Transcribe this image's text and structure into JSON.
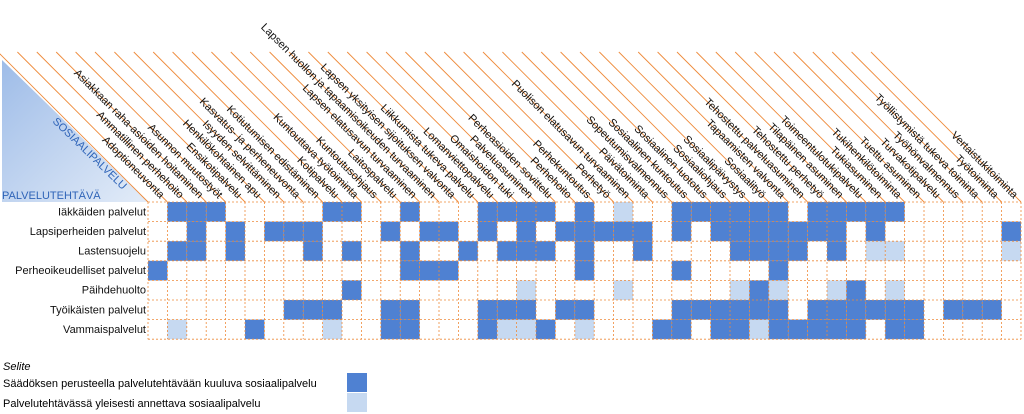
{
  "corner": {
    "top_label": "SOSIAALIPALVELU",
    "bottom_label": "PALVELUTEHTÄVÄ"
  },
  "chart_data": {
    "type": "table",
    "columns": [
      "Adoptioneuvonta",
      "Ammatillinen perhehoito",
      "Asiakkaan raha-asioiden hoitaminen",
      "Asunnon muutostyöt",
      "Ensikotipalvelu",
      "Henkilökohtainen apu",
      "Isyyden selvittäminen",
      "Kasvatus- ja perheneuvonta",
      "Kotiutumisen edistäminen",
      "Kotipalvelu",
      "Kuntouttava työtoiminta",
      "Kuntoutusohjaus",
      "Laitospalvelu",
      "Lapsen elatusavun turvaaminen",
      "Lapsen huollon ja tapaamisoikeuden turvaaminen",
      "Lapsen yksityisen sijoituksen valvonta",
      "Liikkumista tukeva palvelu",
      "Lomanviettopalvelu",
      "Omaishoidon tuki",
      "Palveluasuminen",
      "Perheasioiden sovittelu",
      "Perhehoito",
      "Perhekuntoutus",
      "Perhetyö",
      "Puolison elatusavun turvaaminen",
      "Päivätoiminta",
      "Sopeutumisvalmennus",
      "Sosiaalinen kuntoutus",
      "Sosiaalinen luototus",
      "Sosiaaliohjaus",
      "Sosiaalipäivystys",
      "Sosiaalityö",
      "Tapaamisten valvonta",
      "Tehostettu palveluasuminen",
      "Tehostettu perhetyö",
      "Tilapäinen asuminen",
      "Toimeentulotukipalvelu",
      "Tukiasuminen",
      "Tukihenkilötoiminta",
      "Tuettu asuminen",
      "Turvakotipalvelu",
      "Työhönvalmennus",
      "Työllistymistä tukeva toiminta",
      "Työtoiminta",
      "Vertaistukitoiminta"
    ],
    "rows": [
      {
        "name": "Iäkkäiden palvelut",
        "cells": [
          0,
          1,
          1,
          1,
          0,
          0,
          0,
          0,
          0,
          1,
          1,
          0,
          0,
          1,
          0,
          0,
          0,
          1,
          1,
          1,
          1,
          0,
          1,
          0,
          2,
          0,
          0,
          1,
          1,
          1,
          1,
          1,
          1,
          0,
          1,
          1,
          1,
          1,
          1,
          0,
          0,
          0,
          0,
          0,
          0
        ]
      },
      {
        "name": "Lapsiperheiden palvelut",
        "cells": [
          0,
          0,
          1,
          0,
          1,
          0,
          1,
          1,
          1,
          0,
          0,
          0,
          1,
          0,
          1,
          1,
          0,
          1,
          0,
          1,
          0,
          1,
          1,
          1,
          1,
          1,
          0,
          1,
          0,
          1,
          1,
          1,
          1,
          1,
          1,
          1,
          0,
          1,
          0,
          0,
          0,
          0,
          0,
          0,
          1
        ]
      },
      {
        "name": "Lastensuojelu",
        "cells": [
          0,
          1,
          1,
          0,
          1,
          0,
          0,
          0,
          1,
          0,
          1,
          0,
          0,
          1,
          0,
          0,
          1,
          0,
          1,
          1,
          1,
          0,
          1,
          0,
          0,
          1,
          0,
          0,
          0,
          0,
          1,
          1,
          1,
          1,
          0,
          1,
          0,
          2,
          2,
          0,
          0,
          0,
          0,
          0,
          2
        ]
      },
      {
        "name": "Perheoikeudelliset palvelut",
        "cells": [
          1,
          0,
          0,
          0,
          0,
          0,
          0,
          0,
          0,
          0,
          0,
          0,
          0,
          1,
          1,
          1,
          0,
          0,
          0,
          0,
          0,
          0,
          1,
          0,
          0,
          0,
          0,
          1,
          0,
          0,
          0,
          0,
          1,
          0,
          0,
          0,
          0,
          0,
          0,
          0,
          0,
          0,
          0,
          0,
          0
        ]
      },
      {
        "name": "Päihdehuolto",
        "cells": [
          0,
          0,
          0,
          0,
          0,
          0,
          0,
          0,
          0,
          0,
          1,
          0,
          0,
          0,
          0,
          0,
          0,
          0,
          0,
          2,
          0,
          0,
          0,
          0,
          2,
          0,
          0,
          0,
          0,
          0,
          2,
          1,
          2,
          0,
          0,
          2,
          1,
          0,
          2,
          0,
          0,
          0,
          0,
          0,
          0
        ]
      },
      {
        "name": "Työikäisten palvelut",
        "cells": [
          0,
          0,
          0,
          0,
          0,
          0,
          0,
          1,
          1,
          1,
          0,
          0,
          1,
          1,
          0,
          0,
          0,
          1,
          1,
          1,
          0,
          1,
          1,
          0,
          0,
          0,
          0,
          1,
          1,
          1,
          1,
          1,
          1,
          0,
          1,
          1,
          1,
          1,
          1,
          1,
          0,
          1,
          1,
          1,
          0
        ]
      },
      {
        "name": "Vammaispalvelut",
        "cells": [
          0,
          2,
          0,
          0,
          0,
          1,
          0,
          0,
          0,
          2,
          0,
          0,
          1,
          1,
          0,
          0,
          0,
          1,
          2,
          2,
          1,
          0,
          2,
          0,
          0,
          0,
          1,
          1,
          0,
          1,
          1,
          2,
          1,
          1,
          1,
          1,
          1,
          0,
          1,
          1,
          0,
          0,
          0,
          0,
          0
        ]
      }
    ],
    "legend": {
      "title": "Selite",
      "items": [
        {
          "label": "Säädöksen perusteella palvelutehtävään kuuluva sosiaalipalvelu",
          "value": 1,
          "color": "#4f81d2"
        },
        {
          "label": "Palvelutehtävässä yleisesti annettava sosiaalipalvelu",
          "value": 2,
          "color": "#c6d9f1"
        }
      ]
    }
  },
  "colors": {
    "dark_cell": "#4f81d2",
    "light_cell": "#c6d9f1",
    "grid_line": "#ee8a3a",
    "corner_fill": "#c6d9f1",
    "corner_text": "#2f64b8"
  }
}
